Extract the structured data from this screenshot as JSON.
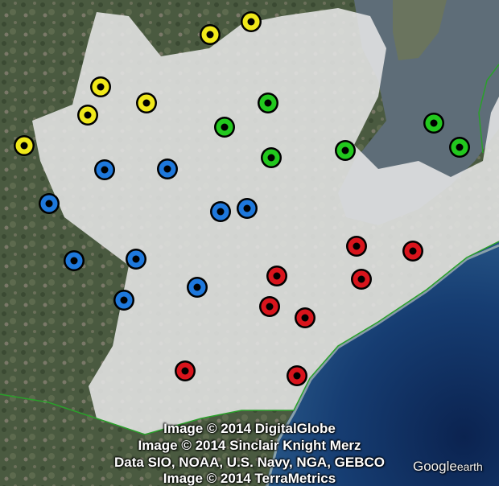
{
  "map": {
    "colors": {
      "yellow": "#f0e81a",
      "green": "#22c81e",
      "blue": "#1e78dc",
      "red": "#d8141c"
    },
    "markers": [
      {
        "group": "yellow"
      },
      {
        "group": "yellow"
      },
      {
        "group": "yellow"
      },
      {
        "group": "yellow"
      },
      {
        "group": "yellow"
      },
      {
        "group": "yellow"
      },
      {
        "group": "green"
      },
      {
        "group": "green"
      },
      {
        "group": "green"
      },
      {
        "group": "green"
      },
      {
        "group": "green"
      },
      {
        "group": "green"
      },
      {
        "group": "blue"
      },
      {
        "group": "blue"
      },
      {
        "group": "blue"
      },
      {
        "group": "blue"
      },
      {
        "group": "blue"
      },
      {
        "group": "blue"
      },
      {
        "group": "blue"
      },
      {
        "group": "blue"
      },
      {
        "group": "blue"
      },
      {
        "group": "red"
      },
      {
        "group": "red"
      },
      {
        "group": "red"
      },
      {
        "group": "red"
      },
      {
        "group": "red"
      },
      {
        "group": "red"
      },
      {
        "group": "red"
      },
      {
        "group": "red"
      }
    ]
  },
  "attribution": {
    "line1": "Image © 2014 DigitalGlobe",
    "line2": "Image © 2014 Sinclair Knight Merz",
    "line3": "Data SIO, NOAA, U.S. Navy, NGA, GEBCO",
    "line4": "Image © 2014 TerraMetrics"
  },
  "logo": {
    "google": "Google",
    "earth": "earth"
  }
}
